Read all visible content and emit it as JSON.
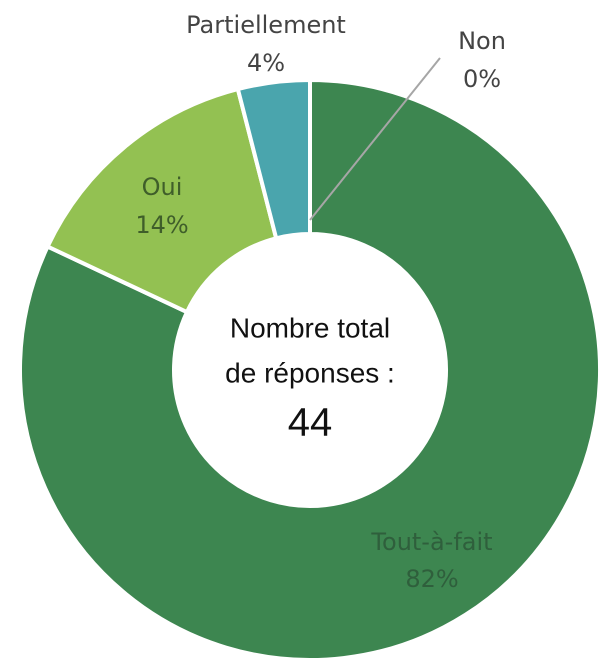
{
  "chart_data": {
    "type": "donut",
    "categories": [
      "Tout-à-fait",
      "Oui",
      "Partiellement",
      "Non"
    ],
    "values": [
      82,
      14,
      4,
      0
    ],
    "value_labels": [
      "82%",
      "14%",
      "4%",
      "0%"
    ],
    "colors": [
      "#3d8650",
      "#93c152",
      "#4aa5ad",
      null
    ],
    "center_label": [
      "Nombre total",
      "de réponses :"
    ],
    "total": 44
  }
}
